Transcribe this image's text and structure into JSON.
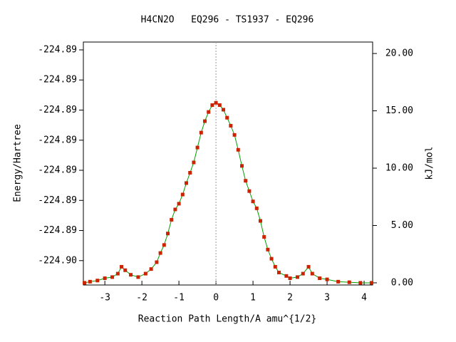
{
  "chart_data": {
    "type": "line",
    "title": "H4CN2O   EQ296 - TS1937 - EQ296",
    "xlabel": "Reaction Path Length/A amu^{1/2}",
    "ylabel": "Energy/Hartree",
    "y2label": "kJ/mol",
    "xlim": [
      -3.58,
      4.23
    ],
    "xticks": [
      -3,
      -2,
      -1,
      0,
      1,
      2,
      3,
      4
    ],
    "ylim": [
      -224.90081,
      -224.89274
    ],
    "yticks": [
      {
        "value": -224.9,
        "label": "-224.90"
      },
      {
        "value": -224.899,
        "label": "-224.89"
      },
      {
        "value": -224.898,
        "label": "-224.89"
      },
      {
        "value": -224.897,
        "label": "-224.89"
      },
      {
        "value": -224.896,
        "label": "-224.89"
      },
      {
        "value": -224.895,
        "label": "-224.89"
      },
      {
        "value": -224.894,
        "label": "-224.89"
      },
      {
        "value": -224.893,
        "label": "-224.89"
      }
    ],
    "y2lim": [
      -0.19,
      21.0
    ],
    "y2ticks": [
      {
        "value": 0,
        "label": "0.00"
      },
      {
        "value": 5,
        "label": "5.00"
      },
      {
        "value": 10,
        "label": "10.00"
      },
      {
        "value": 15,
        "label": "15.00"
      },
      {
        "value": 20,
        "label": "20.00"
      }
    ],
    "vline": 0,
    "series": [
      {
        "axis": "y2",
        "color": "#00a000",
        "marker_color": "#cc2200",
        "x": [
          -3.55,
          -3.4,
          -3.2,
          -3.0,
          -2.8,
          -2.65,
          -2.55,
          -2.45,
          -2.3,
          -2.1,
          -1.9,
          -1.75,
          -1.6,
          -1.5,
          -1.4,
          -1.3,
          -1.2,
          -1.1,
          -1.0,
          -0.9,
          -0.8,
          -0.7,
          -0.6,
          -0.5,
          -0.4,
          -0.3,
          -0.2,
          -0.1,
          0.0,
          0.1,
          0.2,
          0.3,
          0.4,
          0.5,
          0.6,
          0.7,
          0.8,
          0.9,
          1.0,
          1.1,
          1.2,
          1.3,
          1.4,
          1.5,
          1.6,
          1.7,
          1.9,
          2.0,
          2.2,
          2.35,
          2.5,
          2.6,
          2.8,
          3.0,
          3.3,
          3.6,
          3.9,
          4.2
        ],
        "values": [
          0.0,
          0.1,
          0.2,
          0.4,
          0.5,
          0.8,
          1.4,
          1.1,
          0.7,
          0.5,
          0.8,
          1.2,
          1.8,
          2.6,
          3.3,
          4.3,
          5.5,
          6.4,
          6.9,
          7.7,
          8.7,
          9.6,
          10.5,
          11.8,
          13.1,
          14.1,
          14.9,
          15.5,
          15.7,
          15.5,
          15.1,
          14.4,
          13.7,
          12.9,
          11.6,
          10.2,
          8.9,
          8.0,
          7.1,
          6.5,
          5.4,
          4.0,
          2.9,
          2.1,
          1.4,
          0.9,
          0.6,
          0.4,
          0.5,
          0.8,
          1.4,
          0.8,
          0.4,
          0.3,
          0.1,
          0.05,
          0.0,
          0.0
        ]
      }
    ]
  }
}
